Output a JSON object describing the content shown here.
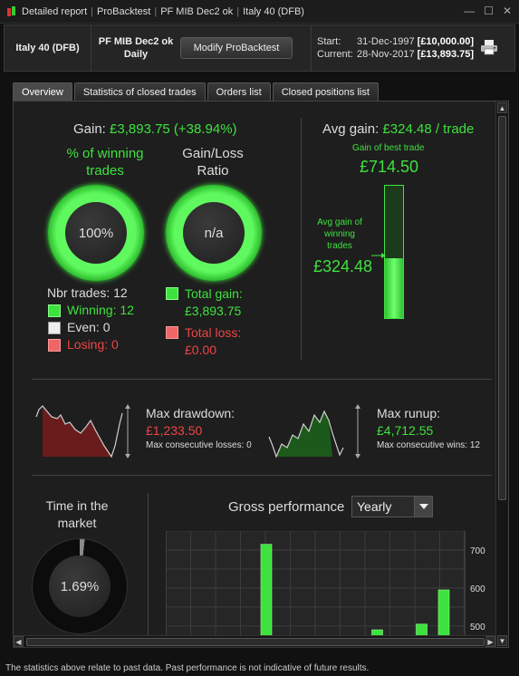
{
  "titlebar": {
    "segments": [
      "Detailed report",
      "ProBacktest",
      "PF MIB Dec2 ok",
      "Italy 40 (DFB)"
    ],
    "controls": [
      "—",
      "☐",
      "✕"
    ]
  },
  "header": {
    "instrument": "Italy 40 (DFB)",
    "system_name": "PF MIB Dec2 ok",
    "timeframe": "Daily",
    "modify_label": "Modify ProBacktest",
    "start_label": "Start:",
    "start_date": "31-Dec-1997",
    "start_value": "[£10,000.00]",
    "current_label": "Current:",
    "current_date": "28-Nov-2017",
    "current_value": "[£13,893.75]"
  },
  "tabs": [
    {
      "label": "Overview",
      "active": true
    },
    {
      "label": "Statistics of closed trades",
      "active": false
    },
    {
      "label": "Orders list",
      "active": false
    },
    {
      "label": "Closed positions list",
      "active": false
    }
  ],
  "overview": {
    "gain_label": "Gain:",
    "gain_value": "£3,893.75 (+38.94%)",
    "winning_title_1": "% of winning",
    "winning_title_2": "trades",
    "winning_pct": "100%",
    "ratio_title_1": "Gain/Loss",
    "ratio_title_2": "Ratio",
    "ratio_value": "n/a",
    "nbr_trades": "Nbr trades: 12",
    "winning": "Winning: 12",
    "even": "Even: 0",
    "losing": "Losing: 0",
    "total_gain_label": "Total gain:",
    "total_gain_value": "£3,893.75",
    "total_loss_label": "Total loss:",
    "total_loss_value": "£0.00",
    "avg_gain_label": "Avg gain:",
    "avg_gain_value": "£324.48 / trade",
    "best_trade_label": "Gain of best trade",
    "best_trade_value": "£714.50",
    "avg_win_label_1": "Avg gain of",
    "avg_win_label_2": "winning",
    "avg_win_label_3": "trades",
    "avg_win_value": "£324.48",
    "avg_win_fraction": 0.454,
    "max_drawdown_label": "Max drawdown:",
    "max_drawdown_value": "£1,233.50",
    "max_consec_losses": "Max consecutive losses: 0",
    "max_runup_label": "Max runup:",
    "max_runup_value": "£4,712.55",
    "max_consec_wins": "Max consecutive wins: 12",
    "time_market_1": "Time in the",
    "time_market_2": "market",
    "time_market_value": "1.69%",
    "time_market_fraction": 0.0169,
    "gross_perf_label": "Gross performance",
    "period_select": "Yearly"
  },
  "colors": {
    "green": "#3ee23e",
    "red": "#ee4444",
    "accent_bg": "#1e1e1e"
  },
  "chart_data": {
    "type": "bar",
    "title": "Gross performance",
    "yticks": [
      700,
      600,
      500
    ],
    "ylim": [
      440,
      750
    ],
    "values": [
      715,
      null,
      null,
      null,
      null,
      490,
      null,
      505,
      595
    ],
    "grid": true
  },
  "footer": {
    "disclaimer": "The statistics above relate to past data. Past performance is not indicative of future results."
  }
}
